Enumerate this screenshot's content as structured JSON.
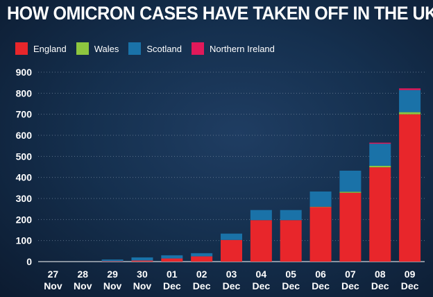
{
  "title": "HOW OMICRON CASES HAVE TAKEN OFF IN THE UK",
  "legend": [
    {
      "label": "England",
      "color": "#e8262b"
    },
    {
      "label": "Wales",
      "color": "#8dc63f"
    },
    {
      "label": "Scotland",
      "color": "#1a72a8"
    },
    {
      "label": "Northern Ireland",
      "color": "#e0195a"
    }
  ],
  "chart_data": {
    "type": "bar",
    "stacked": true,
    "title": "HOW OMICRON CASES HAVE TAKEN OFF IN THE UK",
    "categories": [
      [
        "27",
        "Nov"
      ],
      [
        "28",
        "Nov"
      ],
      [
        "29",
        "Nov"
      ],
      [
        "30",
        "Nov"
      ],
      [
        "01",
        "Dec"
      ],
      [
        "02",
        "Dec"
      ],
      [
        "03",
        "Dec"
      ],
      [
        "04",
        "Dec"
      ],
      [
        "05",
        "Dec"
      ],
      [
        "06",
        "Dec"
      ],
      [
        "07",
        "Dec"
      ],
      [
        "08",
        "Dec"
      ],
      [
        "09",
        "Dec"
      ]
    ],
    "series": [
      {
        "name": "England",
        "color": "#e8262b",
        "values": [
          0,
          0,
          2,
          5,
          15,
          25,
          103,
          197,
          197,
          260,
          327,
          448,
          700
        ]
      },
      {
        "name": "Wales",
        "color": "#8dc63f",
        "values": [
          0,
          0,
          0,
          0,
          0,
          0,
          0,
          0,
          0,
          1,
          5,
          7,
          10
        ]
      },
      {
        "name": "Scotland",
        "color": "#1a72a8",
        "values": [
          0,
          0,
          8,
          15,
          15,
          15,
          30,
          48,
          48,
          72,
          100,
          105,
          105
        ]
      },
      {
        "name": "Northern Ireland",
        "color": "#e0195a",
        "values": [
          0,
          0,
          0,
          0,
          0,
          0,
          0,
          0,
          0,
          0,
          0,
          5,
          8
        ]
      }
    ],
    "yticks": [
      0,
      100,
      200,
      300,
      400,
      500,
      600,
      700,
      800,
      900
    ],
    "ylim": [
      0,
      900
    ],
    "xlabel": "",
    "ylabel": ""
  }
}
